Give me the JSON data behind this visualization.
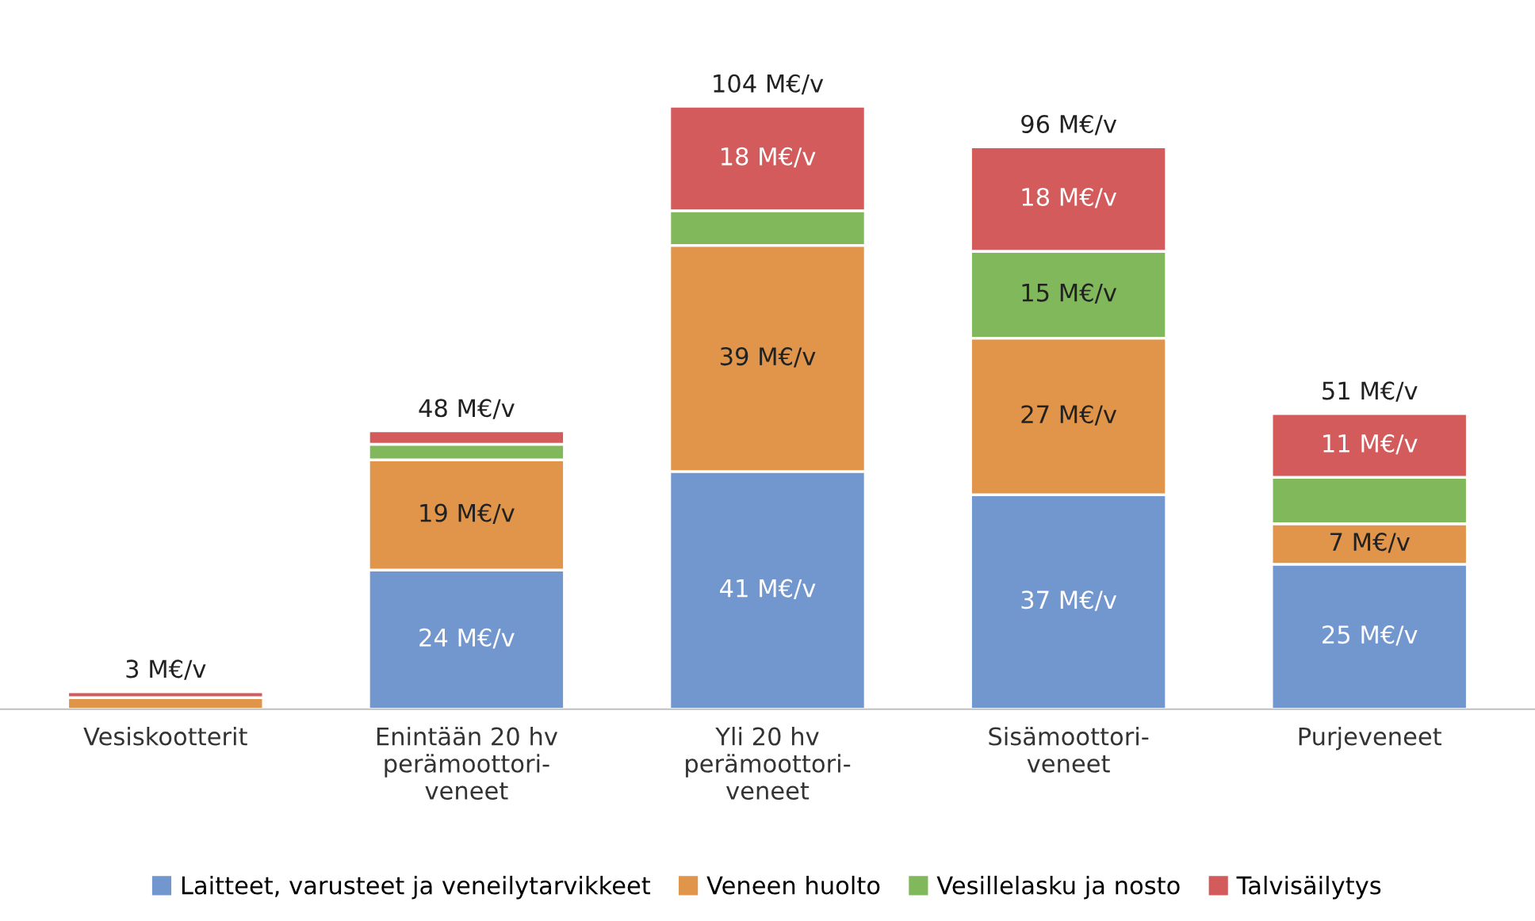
{
  "chart_data": {
    "type": "bar",
    "stacked": true,
    "categories": [
      "Vesiskootterit",
      "Enintään 20 hv\nperämoottori-\nveneet",
      "Yli 20 hv\nperämoottori-\nveneet",
      "Sisämoottori-\nveneet",
      "Purjeveneet"
    ],
    "series": [
      {
        "name": "Laitteet, varusteet ja veneilytarvikkeet",
        "color": "#7297cf",
        "values": [
          null,
          24,
          41,
          37,
          25
        ],
        "value_labels": [
          null,
          "24 M€/v",
          "41 M€/v",
          "37 M€/v",
          "25 M€/v"
        ]
      },
      {
        "name": "Veneen huolto",
        "color": "#e0954a",
        "values": [
          2,
          19,
          39,
          27,
          7
        ],
        "value_labels": [
          null,
          "19 M€/v",
          "39 M€/v",
          "27 M€/v",
          "7 M€/v"
        ]
      },
      {
        "name": "Vesillelasku ja nosto",
        "color": "#82b85c",
        "values": [
          null,
          2.7,
          6,
          15,
          8
        ],
        "value_labels": [
          null,
          null,
          null,
          "15 M€/v",
          null
        ]
      },
      {
        "name": "Talvisäilytys",
        "color": "#d45b5b",
        "values": [
          1.0,
          2.3,
          18,
          18,
          11
        ],
        "value_labels": [
          null,
          null,
          "18 M€/v",
          "18 M€/v",
          "11 M€/v"
        ]
      }
    ],
    "totals": [
      "3 M€/v",
      "48 M€/v",
      "104 M€/v",
      "96 M€/v",
      "51 M€/v"
    ],
    "legend": "bottom"
  }
}
